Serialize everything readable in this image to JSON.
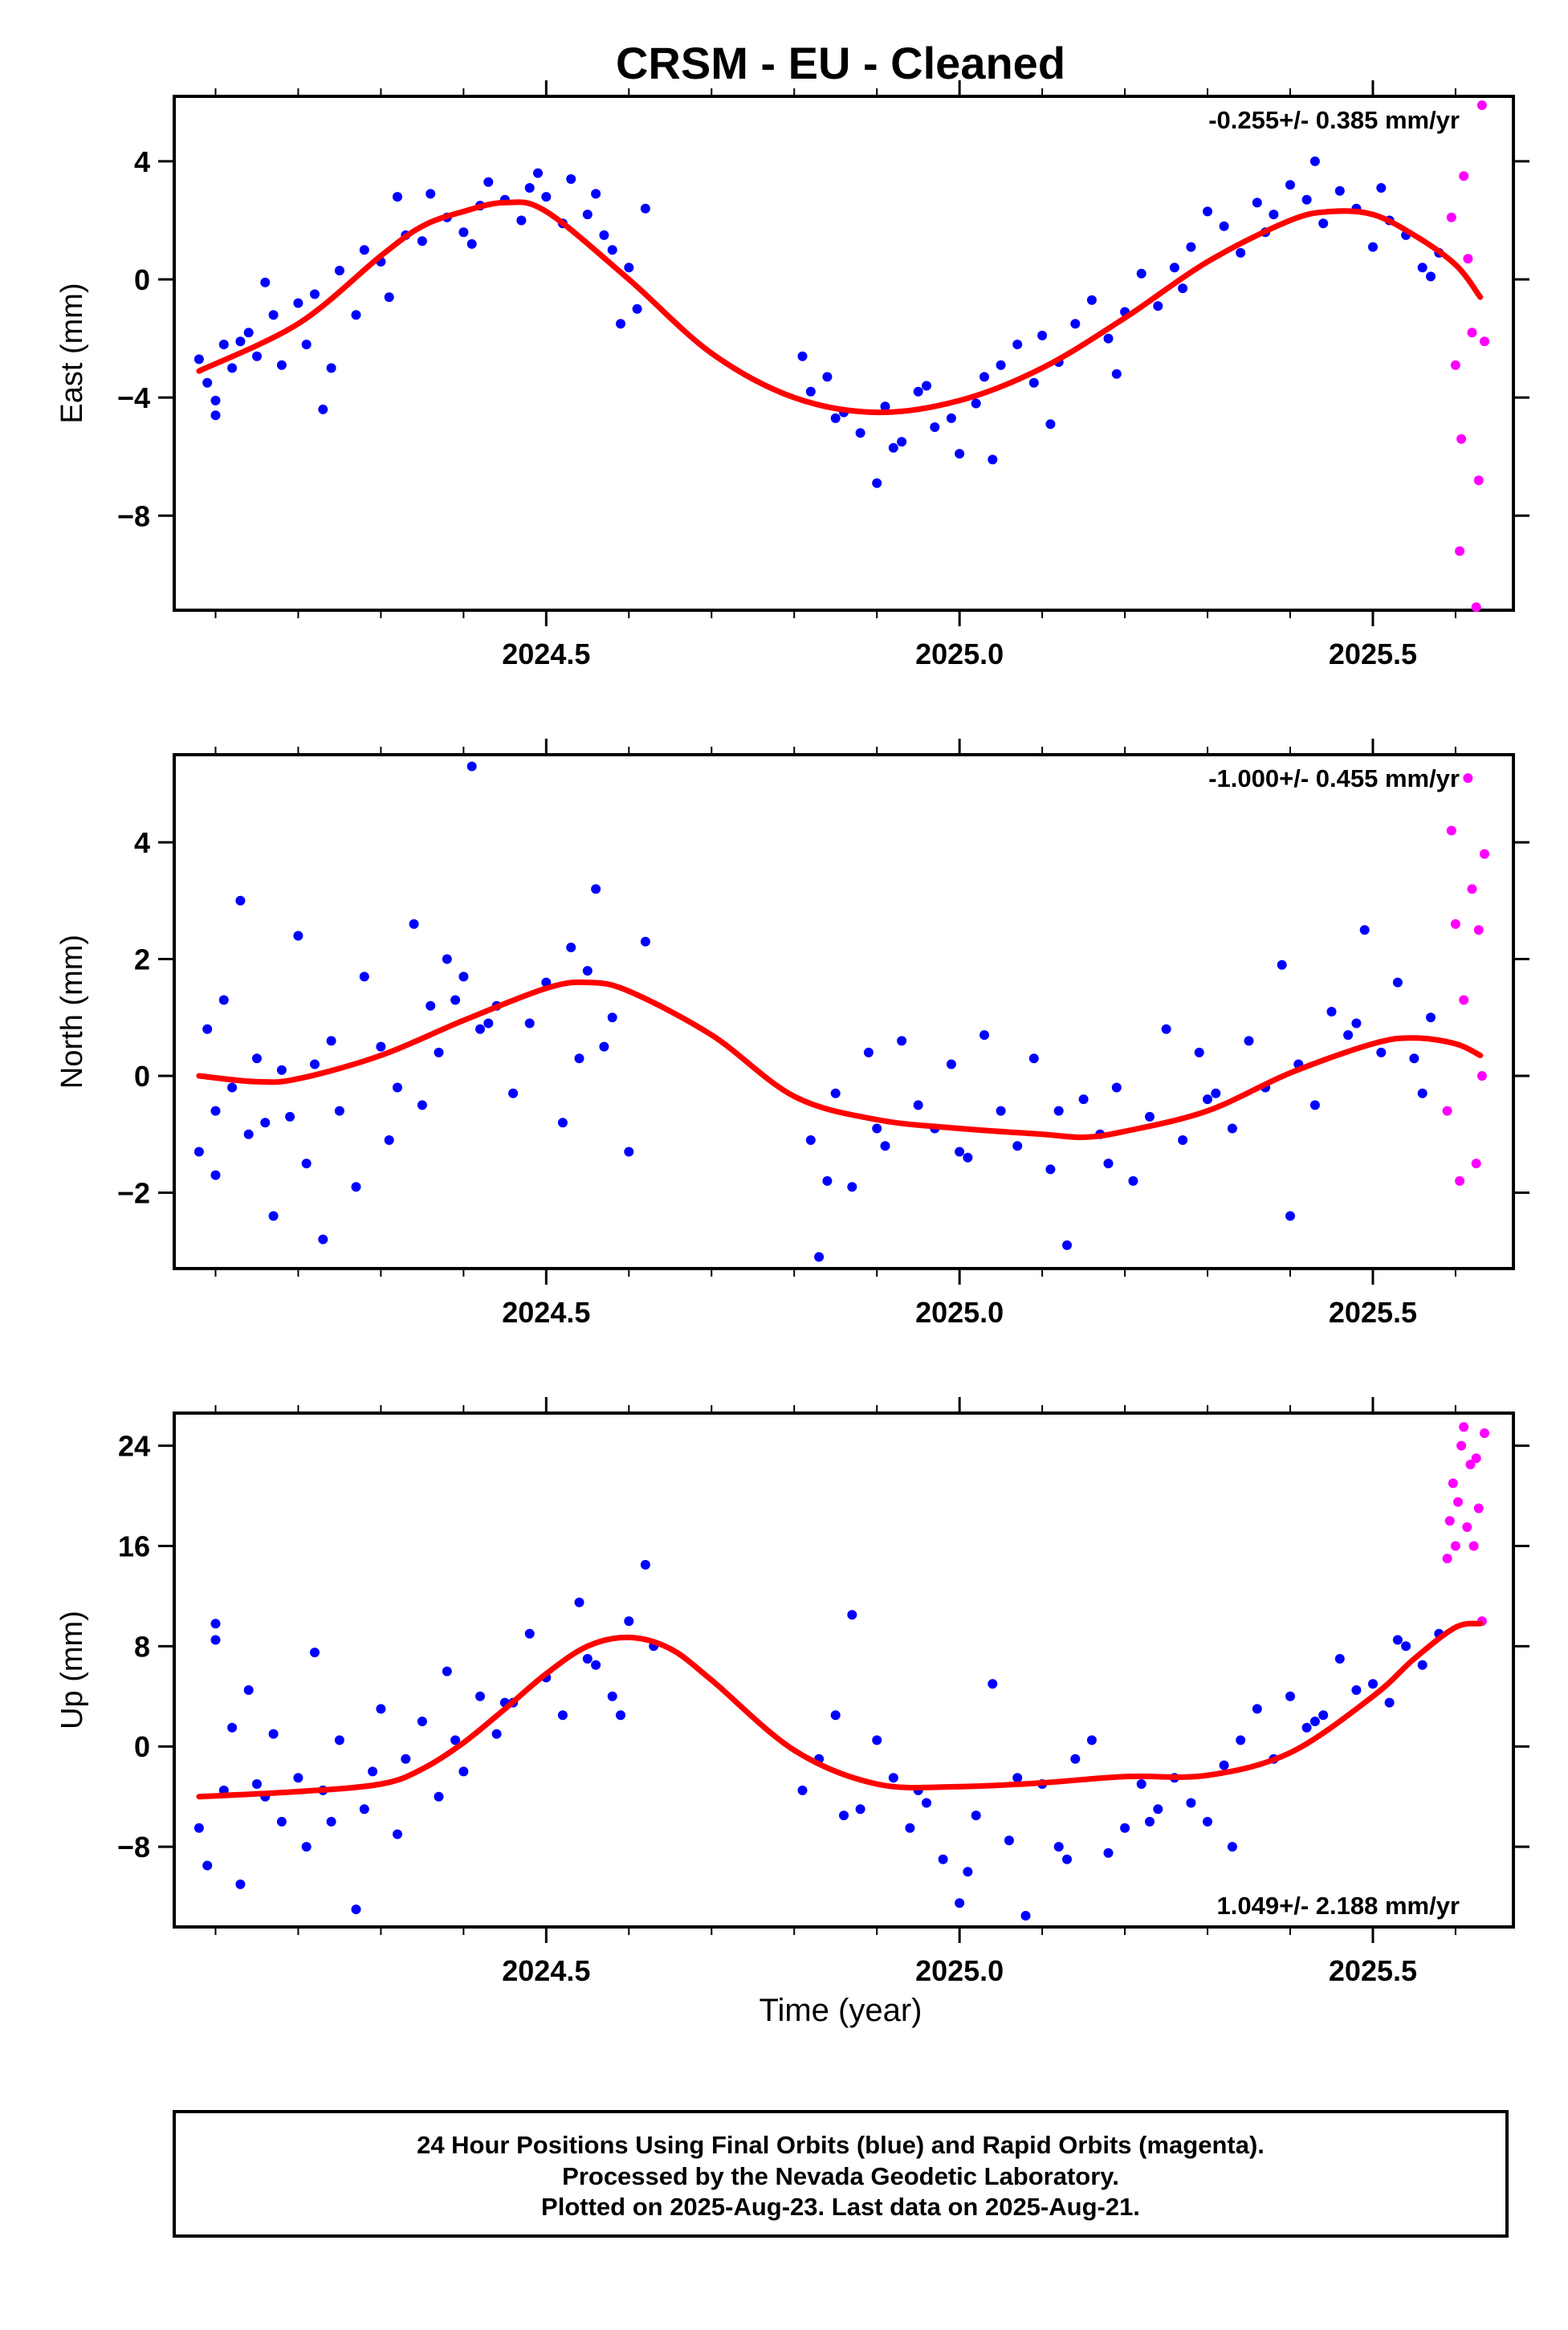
{
  "title": "CRSM  - EU - Cleaned",
  "colors": {
    "final": "#0000ff",
    "rapid": "#ff00ff",
    "fit": "#ff0000"
  },
  "footer": {
    "line1": "24 Hour Positions Using Final Orbits (blue) and Rapid Orbits (magenta).",
    "line2": "Processed by the Nevada Geodetic Laboratory.",
    "line3": "Plotted on 2025-Aug-23. Last data on 2025-Aug-21."
  },
  "chart_data": [
    {
      "type": "scatter",
      "ylabel": "East (mm)",
      "xlabel": "",
      "rate": "-0.255+/- 0.385 mm/yr",
      "xlim": [
        2024.05,
        2025.67
      ],
      "ylim": [
        -11.2,
        6.2
      ],
      "xticks": [
        2024.5,
        2025.0,
        2025.5
      ],
      "xtick_labels": [
        "2024.5",
        "2025.0",
        "2025.5"
      ],
      "yticks": [
        4,
        0,
        -4,
        -8
      ],
      "ytick_labels": [
        "4",
        "0",
        "−4",
        "−8"
      ],
      "fit": {
        "x": [
          2024.08,
          2024.2,
          2024.3,
          2024.35,
          2024.4,
          2024.45,
          2024.5,
          2024.6,
          2024.7,
          2024.8,
          2024.9,
          2025.0,
          2025.1,
          2025.2,
          2025.3,
          2025.4,
          2025.45,
          2025.5,
          2025.55,
          2025.6,
          2025.63
        ],
        "y": [
          -3.1,
          -1.5,
          0.8,
          1.8,
          2.3,
          2.6,
          2.3,
          0.0,
          -2.5,
          -4.0,
          -4.5,
          -4.1,
          -3.0,
          -1.3,
          0.6,
          2.0,
          2.3,
          2.2,
          1.5,
          0.5,
          -0.6
        ]
      },
      "series": [
        {
          "kind": "final",
          "x": [
            2024.08,
            2024.09,
            2024.1,
            2024.11,
            2024.12,
            2024.13,
            2024.14,
            2024.15,
            2024.17,
            2024.18,
            2024.2,
            2024.21,
            2024.22,
            2024.23,
            2024.25,
            2024.27,
            2024.28,
            2024.3,
            2024.32,
            2024.33,
            2024.35,
            2024.36,
            2024.38,
            2024.4,
            2024.42,
            2024.43,
            2024.45,
            2024.47,
            2024.48,
            2024.5,
            2024.52,
            2024.53,
            2024.55,
            2024.57,
            2024.58,
            2024.6,
            2024.61,
            2024.62,
            2024.81,
            2024.82,
            2024.84,
            2024.86,
            2024.88,
            2024.9,
            2024.91,
            2024.93,
            2024.95,
            2024.97,
            2024.99,
            2025.0,
            2025.02,
            2025.03,
            2025.05,
            2025.07,
            2025.09,
            2025.1,
            2025.12,
            2025.14,
            2025.16,
            2025.18,
            2025.2,
            2025.22,
            2025.24,
            2025.26,
            2025.28,
            2025.3,
            2025.32,
            2025.34,
            2025.36,
            2025.38,
            2025.4,
            2025.42,
            2025.44,
            2025.46,
            2025.48,
            2025.5,
            2025.52,
            2025.54,
            2025.56,
            2025.58,
            2024.1,
            2024.16,
            2024.24,
            2024.31,
            2024.41,
            2024.49,
            2024.56,
            2024.59,
            2024.85,
            2024.92,
            2024.96,
            2025.04,
            2025.11,
            2025.19,
            2025.27,
            2025.37,
            2025.43,
            2025.51,
            2025.57
          ],
          "y": [
            -2.7,
            -3.5,
            -4.6,
            -2.2,
            -3.0,
            -2.1,
            -1.8,
            -2.6,
            -1.2,
            -2.9,
            -0.8,
            -2.2,
            -0.5,
            -4.4,
            0.3,
            -1.2,
            1.0,
            0.6,
            2.8,
            1.5,
            1.3,
            2.9,
            2.1,
            1.6,
            2.5,
            3.3,
            2.7,
            2.0,
            3.1,
            2.8,
            1.9,
            3.4,
            2.2,
            1.5,
            1.0,
            0.4,
            -1.0,
            2.4,
            -2.6,
            -3.8,
            -3.3,
            -4.5,
            -5.2,
            -6.9,
            -4.3,
            -5.5,
            -3.8,
            -5.0,
            -4.7,
            -5.9,
            -4.2,
            -3.3,
            -2.9,
            -2.2,
            -3.5,
            -1.9,
            -2.8,
            -1.5,
            -0.7,
            -2.0,
            -1.1,
            0.2,
            -0.9,
            0.4,
            1.1,
            2.3,
            1.8,
            0.9,
            2.6,
            2.2,
            3.2,
            2.7,
            1.9,
            3.0,
            2.4,
            1.1,
            2.0,
            1.5,
            0.4,
            0.9,
            -4.1,
            -0.1,
            -3.0,
            -0.6,
            1.2,
            3.6,
            2.9,
            -1.5,
            -4.7,
            -5.7,
            -3.6,
            -6.1,
            -4.9,
            -3.2,
            -0.3,
            1.6,
            4.0,
            3.1,
            0.1
          ]
        },
        {
          "kind": "rapid",
          "x": [
            2025.595,
            2025.6,
            2025.605,
            2025.607,
            2025.61,
            2025.615,
            2025.62,
            2025.625,
            2025.628,
            2025.632,
            2025.635
          ],
          "y": [
            2.1,
            -2.9,
            -9.2,
            -5.4,
            3.5,
            0.7,
            -1.8,
            -11.1,
            -6.8,
            5.9,
            -2.1
          ]
        }
      ]
    },
    {
      "type": "scatter",
      "ylabel": "North (mm)",
      "xlabel": "",
      "rate": "-1.000+/- 0.455 mm/yr",
      "xlim": [
        2024.05,
        2025.67
      ],
      "ylim": [
        -3.3,
        5.5
      ],
      "xticks": [
        2024.5,
        2025.0,
        2025.5
      ],
      "xtick_labels": [
        "2024.5",
        "2025.0",
        "2025.5"
      ],
      "yticks": [
        4,
        2,
        0,
        -2
      ],
      "ytick_labels": [
        "4",
        "2",
        "0",
        "−2"
      ],
      "fit": {
        "x": [
          2024.08,
          2024.15,
          2024.2,
          2024.3,
          2024.4,
          2024.5,
          2024.55,
          2024.6,
          2024.7,
          2024.8,
          2024.9,
          2025.0,
          2025.1,
          2025.15,
          2025.2,
          2025.3,
          2025.4,
          2025.5,
          2025.55,
          2025.6,
          2025.63
        ],
        "y": [
          0.0,
          -0.1,
          -0.05,
          0.35,
          0.95,
          1.5,
          1.6,
          1.45,
          0.7,
          -0.35,
          -0.75,
          -0.9,
          -1.0,
          -1.05,
          -0.95,
          -0.6,
          0.05,
          0.55,
          0.65,
          0.55,
          0.35
        ]
      },
      "series": [
        {
          "kind": "final",
          "x": [
            2024.08,
            2024.09,
            2024.1,
            2024.11,
            2024.12,
            2024.13,
            2024.14,
            2024.15,
            2024.17,
            2024.18,
            2024.19,
            2024.2,
            2024.21,
            2024.22,
            2024.23,
            2024.25,
            2024.27,
            2024.28,
            2024.3,
            2024.32,
            2024.34,
            2024.35,
            2024.36,
            2024.37,
            2024.38,
            2024.4,
            2024.41,
            2024.42,
            2024.44,
            2024.46,
            2024.48,
            2024.5,
            2024.52,
            2024.53,
            2024.54,
            2024.56,
            2024.58,
            2024.6,
            2024.62,
            2024.82,
            2024.83,
            2024.85,
            2024.87,
            2024.89,
            2024.91,
            2024.93,
            2024.95,
            2024.97,
            2024.99,
            2025.01,
            2025.03,
            2025.05,
            2025.07,
            2025.09,
            2025.11,
            2025.13,
            2025.15,
            2025.17,
            2025.19,
            2025.21,
            2025.23,
            2025.25,
            2025.27,
            2025.29,
            2025.31,
            2025.33,
            2025.35,
            2025.37,
            2025.39,
            2025.41,
            2025.43,
            2025.45,
            2025.47,
            2025.49,
            2025.51,
            2025.53,
            2025.55,
            2025.57,
            2024.1,
            2024.16,
            2024.24,
            2024.31,
            2024.39,
            2024.43,
            2024.55,
            2024.57,
            2024.84,
            2024.9,
            2025.0,
            2025.12,
            2025.18,
            2025.3,
            2025.4,
            2025.48,
            2025.56
          ],
          "y": [
            -1.3,
            0.8,
            -0.6,
            1.3,
            -0.2,
            3.0,
            -1.0,
            0.3,
            -2.4,
            0.1,
            -0.7,
            2.4,
            -1.5,
            0.2,
            -2.8,
            -0.6,
            -1.9,
            1.7,
            0.5,
            -0.2,
            2.6,
            -0.5,
            1.2,
            0.4,
            2.0,
            1.7,
            5.3,
            0.8,
            1.2,
            -0.3,
            0.9,
            1.6,
            -0.8,
            2.2,
            0.3,
            3.2,
            1.0,
            -1.3,
            2.3,
            -1.1,
            -3.1,
            -0.3,
            -1.9,
            0.4,
            -1.2,
            0.6,
            -0.5,
            -0.9,
            0.2,
            -1.4,
            0.7,
            -0.6,
            -1.2,
            0.3,
            -1.6,
            -2.9,
            -0.4,
            -1.0,
            -0.2,
            -1.8,
            -0.7,
            0.8,
            -1.1,
            0.4,
            -0.3,
            -0.9,
            0.6,
            -0.2,
            1.9,
            0.2,
            -0.5,
            1.1,
            0.7,
            2.5,
            0.4,
            1.6,
            0.3,
            1.0,
            -1.7,
            -0.8,
            0.6,
            -1.1,
            1.3,
            0.9,
            1.8,
            0.5,
            -1.8,
            -0.9,
            -1.3,
            -0.6,
            -1.5,
            -0.4,
            -2.4,
            0.9,
            -0.3
          ]
        },
        {
          "kind": "rapid",
          "x": [
            2025.59,
            2025.595,
            2025.6,
            2025.605,
            2025.61,
            2025.615,
            2025.62,
            2025.625,
            2025.628,
            2025.632,
            2025.635
          ],
          "y": [
            -0.6,
            4.2,
            2.6,
            -1.8,
            1.3,
            5.1,
            3.2,
            -1.5,
            2.5,
            0.0,
            3.8
          ]
        }
      ]
    },
    {
      "type": "scatter",
      "ylabel": "Up (mm)",
      "xlabel": "Time (year)",
      "rate": "1.049+/- 2.188 mm/yr",
      "xlim": [
        2024.05,
        2025.67
      ],
      "ylim": [
        -14.4,
        26.6
      ],
      "xticks": [
        2024.5,
        2025.0,
        2025.5
      ],
      "xtick_labels": [
        "2024.5",
        "2025.0",
        "2025.5"
      ],
      "yticks": [
        24,
        16,
        8,
        0,
        -8
      ],
      "ytick_labels": [
        "24",
        "16",
        "8",
        "0",
        "−8"
      ],
      "fit": {
        "x": [
          2024.08,
          2024.2,
          2024.3,
          2024.35,
          2024.4,
          2024.45,
          2024.5,
          2024.55,
          2024.6,
          2024.65,
          2024.7,
          2024.8,
          2024.9,
          2025.0,
          2025.1,
          2025.2,
          2025.3,
          2025.4,
          2025.5,
          2025.55,
          2025.6,
          2025.63
        ],
        "y": [
          -4.0,
          -3.6,
          -3.0,
          -1.8,
          0.3,
          3.0,
          5.8,
          8.0,
          8.7,
          7.8,
          5.3,
          -0.3,
          -3.0,
          -3.2,
          -2.9,
          -2.4,
          -2.3,
          -0.5,
          4.0,
          7.0,
          9.5,
          9.8
        ]
      },
      "series": [
        {
          "kind": "final",
          "x": [
            2024.08,
            2024.09,
            2024.1,
            2024.11,
            2024.12,
            2024.13,
            2024.14,
            2024.15,
            2024.17,
            2024.18,
            2024.2,
            2024.21,
            2024.22,
            2024.23,
            2024.25,
            2024.27,
            2024.28,
            2024.3,
            2024.32,
            2024.33,
            2024.35,
            2024.37,
            2024.38,
            2024.4,
            2024.42,
            2024.44,
            2024.46,
            2024.48,
            2024.5,
            2024.52,
            2024.54,
            2024.56,
            2024.58,
            2024.6,
            2024.62,
            2024.63,
            2024.81,
            2024.83,
            2024.85,
            2024.87,
            2024.88,
            2024.9,
            2024.92,
            2024.94,
            2024.96,
            2024.98,
            2025.0,
            2025.02,
            2025.04,
            2025.06,
            2025.08,
            2025.1,
            2025.12,
            2025.14,
            2025.16,
            2025.18,
            2025.2,
            2025.22,
            2025.24,
            2025.26,
            2025.28,
            2025.3,
            2025.32,
            2025.34,
            2025.36,
            2025.38,
            2025.4,
            2025.42,
            2025.44,
            2025.46,
            2025.48,
            2025.5,
            2025.52,
            2025.54,
            2025.56,
            2025.58,
            2024.1,
            2024.16,
            2024.24,
            2024.29,
            2024.39,
            2024.45,
            2024.55,
            2024.59,
            2024.86,
            2024.95,
            2025.01,
            2025.07,
            2025.13,
            2025.23,
            2025.33,
            2025.43,
            2025.53
          ],
          "y": [
            -6.5,
            -9.5,
            9.8,
            -3.5,
            1.5,
            -11.0,
            4.5,
            -3.0,
            1.0,
            -6.0,
            -2.5,
            -8.0,
            7.5,
            -3.5,
            0.5,
            -13.0,
            -5.0,
            3.0,
            -7.0,
            -1.0,
            2.0,
            -4.0,
            6.0,
            -2.0,
            4.0,
            1.0,
            3.5,
            9.0,
            5.5,
            2.5,
            11.5,
            6.5,
            4.0,
            10.0,
            14.5,
            8.0,
            -3.5,
            -1.0,
            2.5,
            10.5,
            -5.0,
            0.5,
            -2.5,
            -6.5,
            -4.5,
            -9.0,
            -12.5,
            -5.5,
            5.0,
            -7.5,
            -13.5,
            -3.0,
            -8.0,
            -1.0,
            0.5,
            -8.5,
            -6.5,
            -3.0,
            -5.0,
            -2.5,
            -4.5,
            -6.0,
            -1.5,
            0.5,
            3.0,
            -1.0,
            4.0,
            1.5,
            2.5,
            7.0,
            4.5,
            5.0,
            3.5,
            8.0,
            6.5,
            9.0,
            8.5,
            -4.0,
            -6.0,
            -2.0,
            0.5,
            3.5,
            7.0,
            2.5,
            -5.5,
            -3.5,
            -10.0,
            -2.5,
            -9.0,
            -6.0,
            -8.0,
            2.0,
            8.5
          ]
        },
        {
          "kind": "rapid",
          "x": [
            2025.59,
            2025.593,
            2025.597,
            2025.6,
            2025.603,
            2025.607,
            2025.61,
            2025.614,
            2025.618,
            2025.622,
            2025.625,
            2025.628,
            2025.632,
            2025.635
          ],
          "y": [
            15.0,
            18.0,
            21.0,
            16.0,
            19.5,
            24.0,
            25.5,
            17.5,
            22.5,
            16.0,
            23.0,
            19.0,
            10.0,
            25.0
          ]
        }
      ]
    }
  ]
}
